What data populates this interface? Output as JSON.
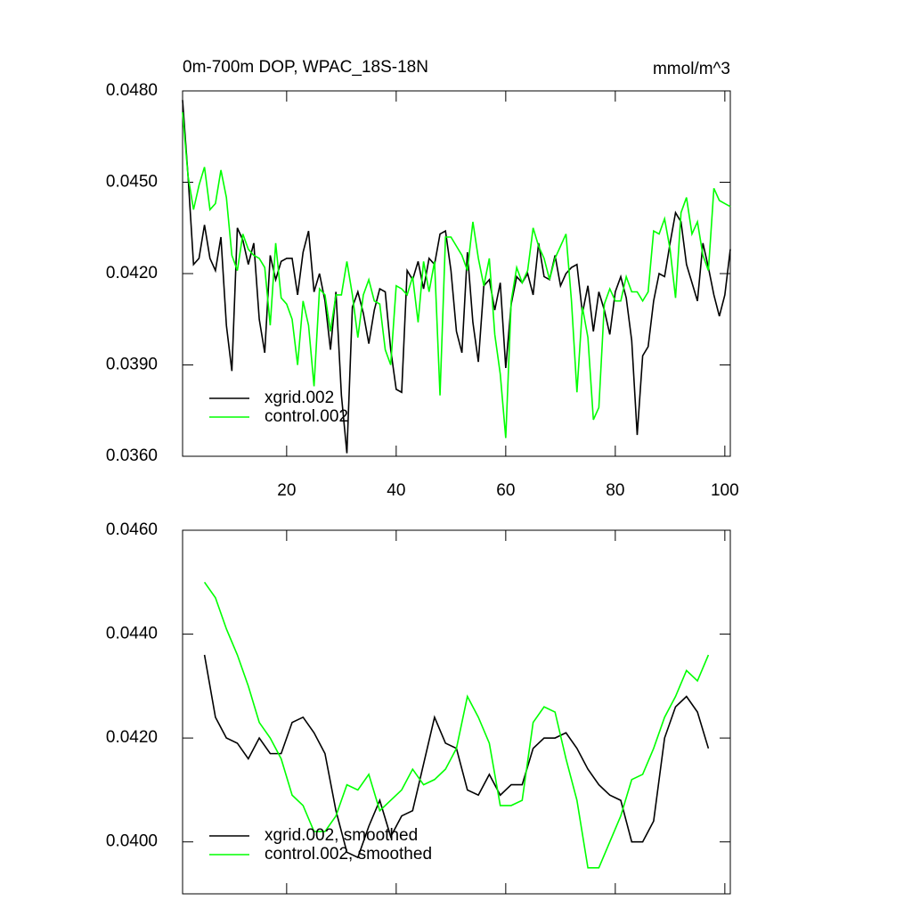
{
  "chart_data": [
    {
      "type": "line",
      "title": "0m-700m DOP, WPAC_18S-18N",
      "subtitle": "mmol/m^3",
      "x": [
        1,
        2,
        3,
        4,
        5,
        6,
        7,
        8,
        9,
        10,
        11,
        12,
        13,
        14,
        15,
        16,
        17,
        18,
        19,
        20,
        21,
        22,
        23,
        24,
        25,
        26,
        27,
        28,
        29,
        30,
        31,
        32,
        33,
        34,
        35,
        36,
        37,
        38,
        39,
        40,
        41,
        42,
        43,
        44,
        45,
        46,
        47,
        48,
        49,
        50,
        51,
        52,
        53,
        54,
        55,
        56,
        57,
        58,
        59,
        60,
        61,
        62,
        63,
        64,
        65,
        66,
        67,
        68,
        69,
        70,
        71,
        72,
        73,
        74,
        75,
        76,
        77,
        78,
        79,
        80,
        81,
        82,
        83,
        84,
        85,
        86,
        87,
        88,
        89,
        90,
        91,
        92,
        93,
        94,
        95,
        96,
        97,
        98,
        99,
        100,
        101
      ],
      "series": [
        {
          "name": "xgrid.002",
          "color": "#000000",
          "values": [
            0.0477,
            0.0452,
            0.0423,
            0.0425,
            0.0436,
            0.0425,
            0.0421,
            0.0432,
            0.0403,
            0.0388,
            0.0435,
            0.0431,
            0.0423,
            0.043,
            0.0405,
            0.0394,
            0.0426,
            0.0418,
            0.0424,
            0.0425,
            0.0425,
            0.0413,
            0.0427,
            0.0434,
            0.0414,
            0.042,
            0.0411,
            0.0395,
            0.0414,
            0.038,
            0.0361,
            0.0409,
            0.0414,
            0.0407,
            0.0397,
            0.0408,
            0.0415,
            0.0414,
            0.0395,
            0.0382,
            0.0381,
            0.0421,
            0.0418,
            0.0424,
            0.0415,
            0.0425,
            0.0423,
            0.0433,
            0.0434,
            0.0421,
            0.0401,
            0.0394,
            0.0427,
            0.0404,
            0.0391,
            0.0416,
            0.0418,
            0.0408,
            0.0417,
            0.0389,
            0.041,
            0.0419,
            0.0417,
            0.042,
            0.0413,
            0.043,
            0.0419,
            0.0418,
            0.0426,
            0.0416,
            0.042,
            0.0422,
            0.0423,
            0.0407,
            0.0416,
            0.0401,
            0.0414,
            0.0408,
            0.04,
            0.0414,
            0.0419,
            0.0412,
            0.0398,
            0.0367,
            0.0393,
            0.0396,
            0.0411,
            0.042,
            0.0419,
            0.043,
            0.044,
            0.0437,
            0.0423,
            0.0417,
            0.0411,
            0.043,
            0.0422,
            0.0413,
            0.0406,
            0.0413,
            0.0428
          ]
        },
        {
          "name": "control.002",
          "color": "#00ff00",
          "values": [
            0.0473,
            0.0452,
            0.0441,
            0.0449,
            0.0455,
            0.0441,
            0.0443,
            0.0454,
            0.0445,
            0.0426,
            0.0421,
            0.0433,
            0.0428,
            0.0426,
            0.0425,
            0.0422,
            0.0403,
            0.043,
            0.0412,
            0.041,
            0.0405,
            0.039,
            0.0411,
            0.0403,
            0.0383,
            0.0415,
            0.0413,
            0.0401,
            0.0413,
            0.0413,
            0.0424,
            0.0413,
            0.0399,
            0.0413,
            0.0418,
            0.0411,
            0.041,
            0.0395,
            0.039,
            0.0416,
            0.0415,
            0.0413,
            0.0419,
            0.0404,
            0.0424,
            0.0414,
            0.0424,
            0.038,
            0.0432,
            0.0432,
            0.0429,
            0.0426,
            0.0421,
            0.0437,
            0.0425,
            0.0416,
            0.0425,
            0.04,
            0.0387,
            0.0366,
            0.0411,
            0.0422,
            0.0417,
            0.0421,
            0.0435,
            0.0429,
            0.0425,
            0.0418,
            0.0425,
            0.0429,
            0.0433,
            0.0411,
            0.0381,
            0.0409,
            0.0399,
            0.0372,
            0.0376,
            0.041,
            0.0415,
            0.0411,
            0.0411,
            0.0419,
            0.0414,
            0.0414,
            0.0411,
            0.0414,
            0.0434,
            0.0433,
            0.0438,
            0.0428,
            0.0412,
            0.044,
            0.0445,
            0.0433,
            0.0437,
            0.0426,
            0.0421,
            0.0448,
            0.0444,
            0.0443,
            0.0442
          ]
        }
      ],
      "xlim": [
        1,
        101
      ],
      "xticks": [
        20,
        40,
        60,
        80,
        100
      ],
      "ylim": [
        0.036,
        0.048
      ],
      "yticks": [
        {
          "value": 0.036,
          "label": "0.0360"
        },
        {
          "value": 0.039,
          "label": "0.0390"
        },
        {
          "value": 0.042,
          "label": "0.0420"
        },
        {
          "value": 0.045,
          "label": "0.0450"
        },
        {
          "value": 0.048,
          "label": "0.0480"
        }
      ],
      "legend": "lower left"
    },
    {
      "type": "line",
      "x": [
        5,
        7,
        9,
        11,
        13,
        15,
        17,
        19,
        21,
        23,
        25,
        27,
        29,
        31,
        33,
        35,
        37,
        39,
        41,
        43,
        45,
        47,
        49,
        51,
        53,
        55,
        57,
        59,
        61,
        63,
        65,
        67,
        69,
        71,
        73,
        75,
        77,
        79,
        81,
        83,
        85,
        87,
        89,
        91,
        93,
        95,
        97
      ],
      "series": [
        {
          "name": "xgrid.002, smoothed",
          "color": "#000000",
          "values": [
            0.0436,
            0.0424,
            0.042,
            0.0419,
            0.0416,
            0.042,
            0.0417,
            0.0417,
            0.0423,
            0.0424,
            0.0421,
            0.0417,
            0.0406,
            0.0398,
            0.0397,
            0.0403,
            0.0408,
            0.0401,
            0.0405,
            0.0406,
            0.0415,
            0.0424,
            0.0419,
            0.0418,
            0.041,
            0.0409,
            0.0413,
            0.0409,
            0.0411,
            0.0411,
            0.0418,
            0.042,
            0.042,
            0.0421,
            0.0418,
            0.0414,
            0.0411,
            0.0409,
            0.0408,
            0.04,
            0.04,
            0.0404,
            0.042,
            0.0426,
            0.0428,
            0.0425,
            0.0418
          ]
        },
        {
          "name": "control.002, smoothed",
          "color": "#00ff00",
          "values": [
            0.045,
            0.0447,
            0.0441,
            0.0436,
            0.043,
            0.0423,
            0.042,
            0.0416,
            0.0409,
            0.0407,
            0.0402,
            0.0402,
            0.0405,
            0.0411,
            0.041,
            0.0413,
            0.0406,
            0.0408,
            0.041,
            0.0414,
            0.0411,
            0.0412,
            0.0414,
            0.0418,
            0.0428,
            0.0424,
            0.0419,
            0.0407,
            0.0407,
            0.0408,
            0.0423,
            0.0426,
            0.0425,
            0.0416,
            0.0408,
            0.0395,
            0.0395,
            0.04,
            0.0405,
            0.0412,
            0.0413,
            0.0418,
            0.0424,
            0.0428,
            0.0433,
            0.0431,
            0.0436
          ]
        }
      ],
      "xlim": [
        1,
        101
      ],
      "xticks": [
        20,
        40,
        60,
        80,
        100
      ],
      "ylim": [
        0.039,
        0.046
      ],
      "yticks": [
        {
          "value": 0.04,
          "label": "0.0400"
        },
        {
          "value": 0.042,
          "label": "0.0420"
        },
        {
          "value": 0.044,
          "label": "0.0440"
        },
        {
          "value": 0.046,
          "label": "0.0460"
        }
      ],
      "legend": "lower left"
    }
  ]
}
